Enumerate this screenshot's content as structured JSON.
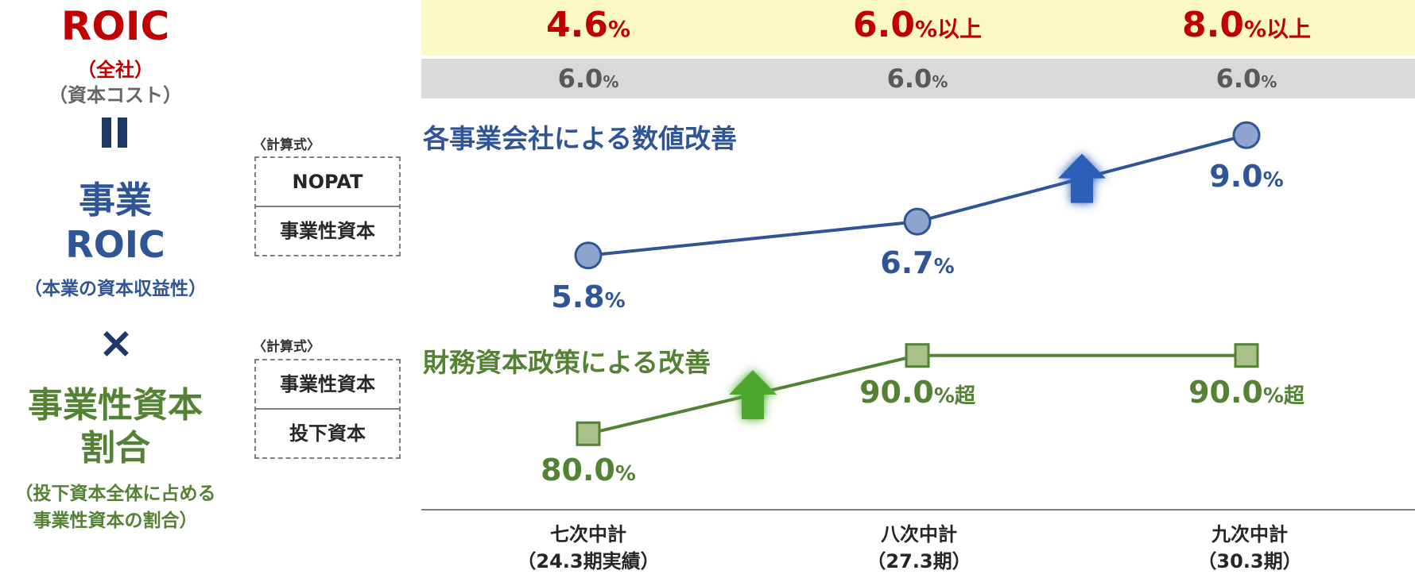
{
  "left": {
    "roic_title": "ROIC",
    "roic_sub": "（全社）",
    "cost_sub": "（資本コスト）",
    "biz_roic_line1": "事業",
    "biz_roic_line2": "ROIC",
    "biz_roic_sub": "（本業の資本収益性）",
    "times_symbol": "×",
    "ratio_line1": "事業性資本",
    "ratio_line2": "割合",
    "ratio_sub_line1": "（投下資本全体に占める",
    "ratio_sub_line2": "事業性資本の割合）"
  },
  "formulas": [
    {
      "label": "〈計算式〉",
      "numerator": "NOPAT",
      "denominator": "事業性資本"
    },
    {
      "label": "〈計算式〉",
      "numerator": "事業性資本",
      "denominator": "投下資本"
    }
  ],
  "top_row": [
    {
      "value": "4.6",
      "unit": "%"
    },
    {
      "value": "6.0",
      "unit": "%以上"
    },
    {
      "value": "8.0",
      "unit": "%以上"
    }
  ],
  "cost_row": [
    {
      "value": "6.0",
      "unit": "%"
    },
    {
      "value": "6.0",
      "unit": "%"
    },
    {
      "value": "6.0",
      "unit": "%"
    }
  ],
  "colors": {
    "red": "#c00000",
    "blue": "#2f5597",
    "blue_marker": "#8fa3cf",
    "green": "#548235",
    "green_marker": "#a9c08a",
    "arrow_blue": "#2e5eb8",
    "arrow_green": "#4ea72e",
    "band_yellow": "#fcf8c4",
    "band_gray": "#d9d9d9"
  },
  "chart_data": {
    "type": "line",
    "categories": [
      "七次中計\n（24.3期実績）",
      "八次中計\n（27.3期）",
      "九次中計\n（30.3期）"
    ],
    "series": [
      {
        "name": "各事業会社による数値改善",
        "values": [
          5.8,
          6.7,
          9.0
        ],
        "labels": [
          {
            "value": "5.8",
            "unit": "%"
          },
          {
            "value": "6.7",
            "unit": "%"
          },
          {
            "value": "9.0",
            "unit": "%"
          }
        ],
        "marker": "circle",
        "color": "#2f5597"
      },
      {
        "name": "財務資本政策による改善",
        "values": [
          80.0,
          90.0,
          90.0
        ],
        "labels": [
          {
            "value": "80.0",
            "unit": "%"
          },
          {
            "value": "90.0",
            "unit": "%超"
          },
          {
            "value": "90.0",
            "unit": "%超"
          }
        ],
        "marker": "square",
        "color": "#548235"
      }
    ],
    "x_labels": [
      {
        "line1": "七次中計",
        "line2": "（24.3期実績）"
      },
      {
        "line1": "八次中計",
        "line2": "（27.3期）"
      },
      {
        "line1": "九次中計",
        "line2": "（30.3期）"
      }
    ],
    "arrows": [
      "up",
      "up"
    ]
  }
}
